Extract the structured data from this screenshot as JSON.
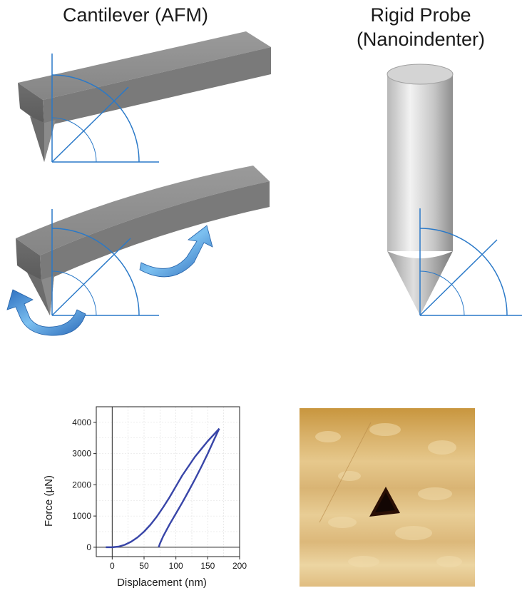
{
  "titles": {
    "afm_line1": "Cantilever (AFM)",
    "rigid_line1": "Rigid Probe",
    "rigid_line2": "(Nanoindenter)"
  },
  "colors": {
    "angle_lines": "#2a79c8",
    "curve": "#3845a8",
    "arrow": "#3a8fd8",
    "beam": "#7d7d7d",
    "afm_bg": "#d7b06e",
    "indent": "#2a0f05"
  },
  "chart_data": {
    "type": "line",
    "xlabel": "Displacement (nm)",
    "ylabel": "Force (µN)",
    "xlim": [
      -25,
      200
    ],
    "ylim": [
      -300,
      4500
    ],
    "xticks": [
      0,
      50,
      100,
      150,
      200
    ],
    "yticks": [
      0,
      1000,
      2000,
      3000,
      4000
    ],
    "grid": true,
    "series": [
      {
        "x": [
          -10,
          0,
          10,
          20,
          30,
          40,
          50,
          60,
          70,
          80,
          90,
          100,
          110,
          120,
          130,
          140,
          150,
          160,
          168
        ],
        "y": [
          0,
          0,
          20,
          80,
          180,
          320,
          500,
          720,
          980,
          1280,
          1600,
          1950,
          2300,
          2600,
          2900,
          3150,
          3400,
          3620,
          3800
        ]
      },
      {
        "x": [
          168,
          160,
          150,
          140,
          130,
          120,
          110,
          100,
          90,
          80,
          75,
          73
        ],
        "y": [
          3800,
          3450,
          3000,
          2580,
          2180,
          1800,
          1430,
          1080,
          730,
          350,
          120,
          0
        ]
      }
    ]
  }
}
